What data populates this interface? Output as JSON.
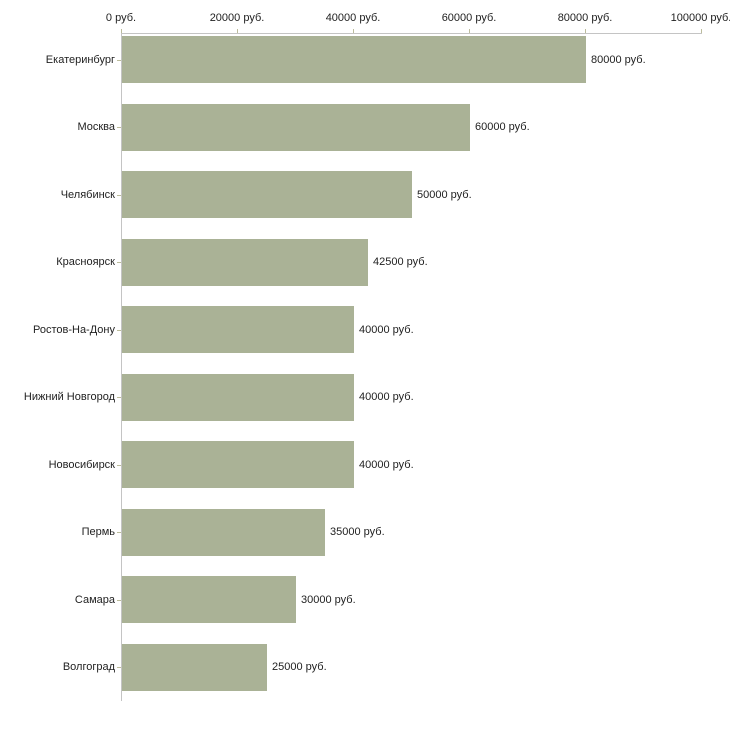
{
  "chart_data": {
    "type": "bar",
    "orientation": "horizontal",
    "title": "",
    "xlabel": "",
    "ylabel": "",
    "xlim": [
      0,
      100000
    ],
    "grid": false,
    "legend": "none",
    "x_ticks": [
      {
        "value": 0,
        "label": "0 руб."
      },
      {
        "value": 20000,
        "label": "20000 руб."
      },
      {
        "value": 40000,
        "label": "40000 руб."
      },
      {
        "value": 60000,
        "label": "60000 руб."
      },
      {
        "value": 80000,
        "label": "80000 руб."
      },
      {
        "value": 100000,
        "label": "100000 руб."
      }
    ],
    "categories": [
      "Екатеринбург",
      "Москва",
      "Челябинск",
      "Красноярск",
      "Ростов-На-Дону",
      "Нижний Новгород",
      "Новосибирск",
      "Пермь",
      "Самара",
      "Волгоград"
    ],
    "values": [
      80000,
      60000,
      50000,
      42500,
      40000,
      40000,
      40000,
      35000,
      30000,
      25000
    ],
    "rows": [
      {
        "city": "Екатеринбург",
        "value": 80000,
        "label": "80000 руб."
      },
      {
        "city": "Москва",
        "value": 60000,
        "label": "60000 руб."
      },
      {
        "city": "Челябинск",
        "value": 50000,
        "label": "50000 руб."
      },
      {
        "city": "Красноярск",
        "value": 42500,
        "label": "42500 руб."
      },
      {
        "city": "Ростов-На-Дону",
        "value": 40000,
        "label": "40000 руб."
      },
      {
        "city": "Нижний Новгород",
        "value": 40000,
        "label": "40000 руб."
      },
      {
        "city": "Новосибирск",
        "value": 40000,
        "label": "40000 руб."
      },
      {
        "city": "Пермь",
        "value": 35000,
        "label": "35000 руб."
      },
      {
        "city": "Самара",
        "value": 30000,
        "label": "30000 руб."
      },
      {
        "city": "Волгоград",
        "value": 25000,
        "label": "25000 руб."
      }
    ],
    "colors": {
      "bar": "#aab296",
      "axis_line": "#c4c4c4",
      "tick_mark": "#bcbc9c",
      "text": "#222222",
      "background": "#ffffff"
    }
  }
}
